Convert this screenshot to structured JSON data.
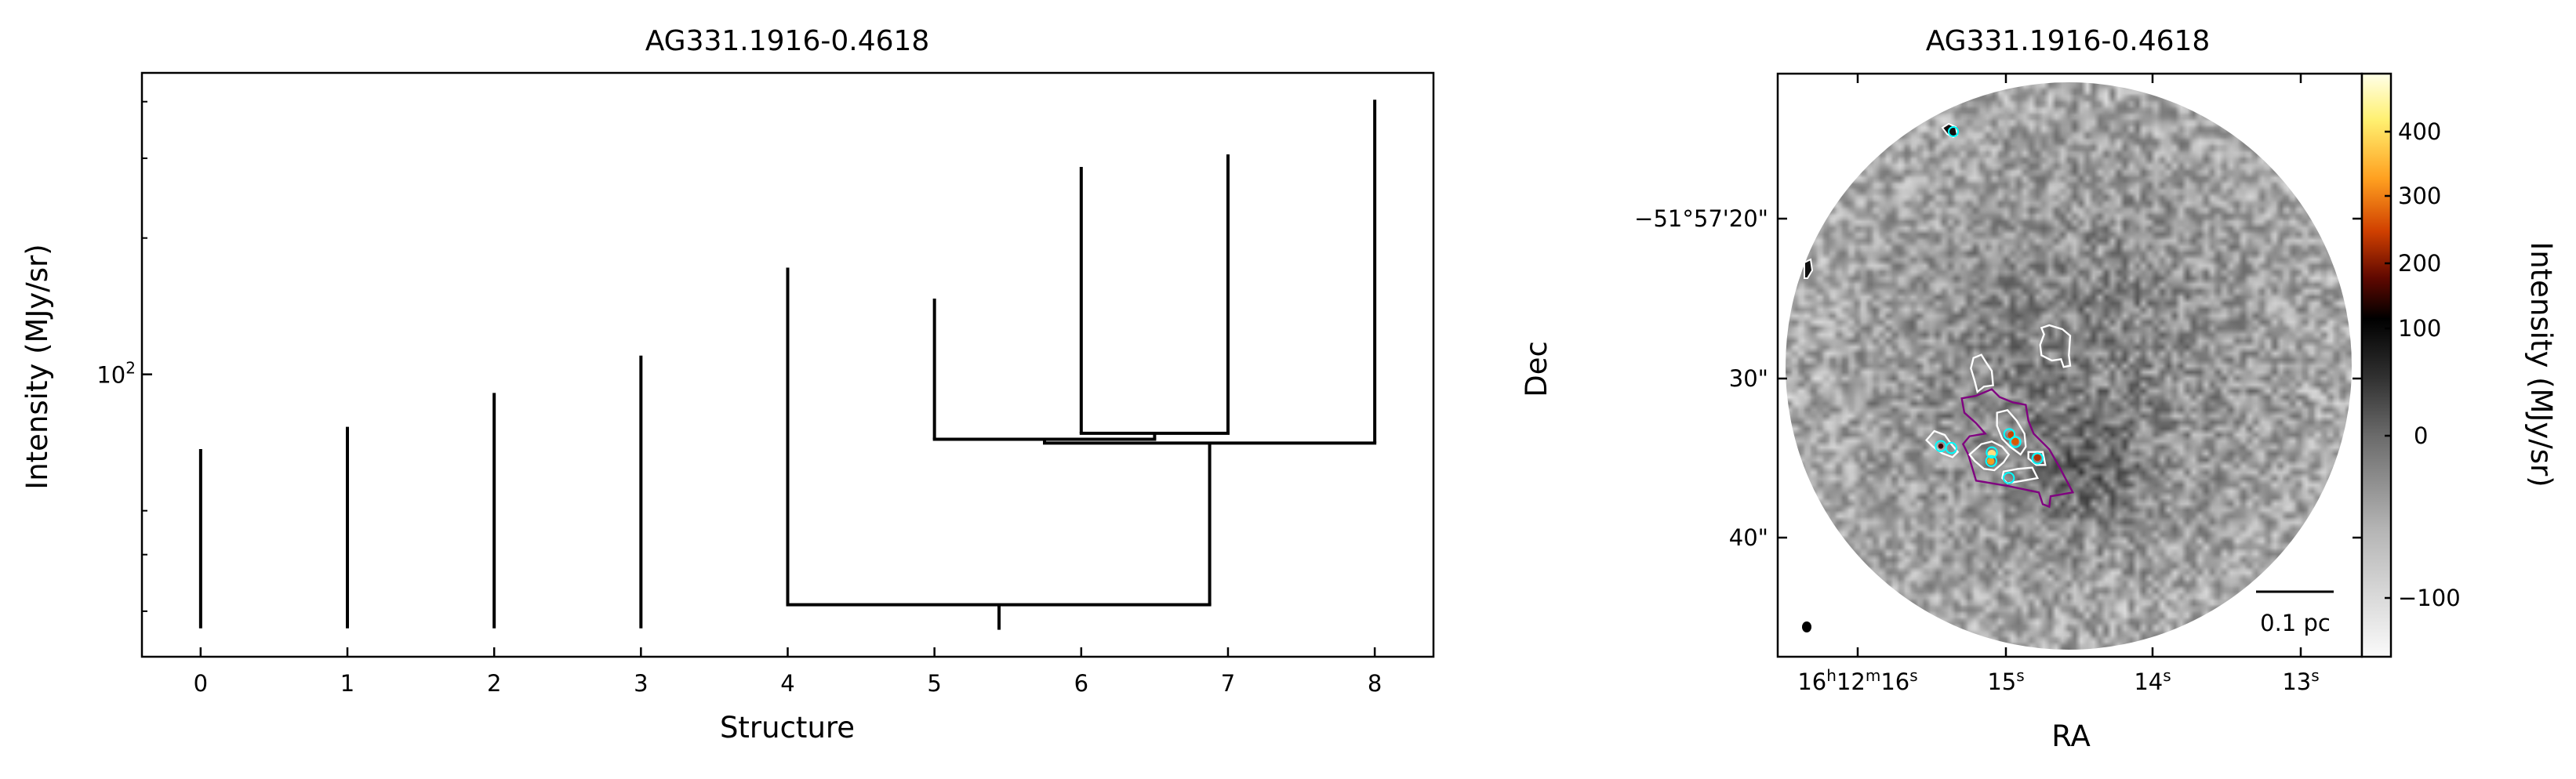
{
  "chart_data": [
    {
      "type": "line",
      "subtype": "dendrogram",
      "title": "AG331.1916-0.4618",
      "xlabel": "Structure",
      "ylabel": "Intensity (MJy/sr)",
      "yscale": "log",
      "xlim": [
        -0.4,
        8.4
      ],
      "ylim": [
        23.8,
        463
      ],
      "xticks": [
        "0",
        "1",
        "2",
        "3",
        "4",
        "5",
        "6",
        "7",
        "8"
      ],
      "ytick_major": [
        {
          "value": 100,
          "label": "10",
          "exp": "2"
        }
      ],
      "ytick_minor": [
        30,
        40,
        50,
        200,
        300,
        400
      ],
      "line_color": "#000000",
      "stems": [
        {
          "x": 0,
          "from": 27.5,
          "to": 68.4
        },
        {
          "x": 1,
          "from": 27.5,
          "to": 76.6
        },
        {
          "x": 2,
          "from": 27.5,
          "to": 91.0
        },
        {
          "x": 3,
          "from": 27.5,
          "to": 110
        },
        {
          "x": 4,
          "from": 31.0,
          "to": 172
        },
        {
          "x": 5,
          "from": 71.9,
          "to": 147
        },
        {
          "x": 6,
          "from": 74.1,
          "to": 287
        },
        {
          "x": 7,
          "from": 74.1,
          "to": 306
        },
        {
          "x": 8,
          "from": 70.5,
          "to": 404
        },
        {
          "x": 6.5,
          "from": 71.9,
          "to": 74.1
        },
        {
          "x": 5.75,
          "from": 70.5,
          "to": 71.9
        },
        {
          "x": 6.875,
          "from": 31.0,
          "to": 70.5
        },
        {
          "x": 5.44,
          "from": 27.3,
          "to": 31.0
        }
      ],
      "branches": [
        {
          "x0": 6,
          "x1": 7,
          "level": 74.1
        },
        {
          "x0": 5,
          "x1": 6.5,
          "level": 71.9
        },
        {
          "x0": 5.75,
          "x1": 8,
          "level": 70.5
        },
        {
          "x0": 4,
          "x1": 6.875,
          "level": 31.0
        }
      ]
    },
    {
      "type": "heatmap",
      "title": "AG331.1916-0.4618",
      "xlabel": "RA",
      "ylabel": "Dec",
      "colorbar_label": "Intensity (MJy/sr)",
      "colormap": "gray-to-afmhot (asinh stretch)",
      "colorbar_range": [
        -140,
        470
      ],
      "colorbar_ticks": [
        "400",
        "300",
        "200",
        "100",
        "0",
        "−100"
      ],
      "ra_ticks": [
        {
          "h": "16",
          "m": "12",
          "s": "16"
        },
        {
          "s": "15"
        },
        {
          "s": "14"
        },
        {
          "s": "13"
        }
      ],
      "dec_ticks": [
        "−51°57'20\"",
        "30\"",
        "40\""
      ],
      "scalebar_label": "0.1 pc",
      "contour_colors": {
        "outer": "#800080",
        "inner": "#ffffff",
        "cores": "#00ffff"
      }
    }
  ]
}
